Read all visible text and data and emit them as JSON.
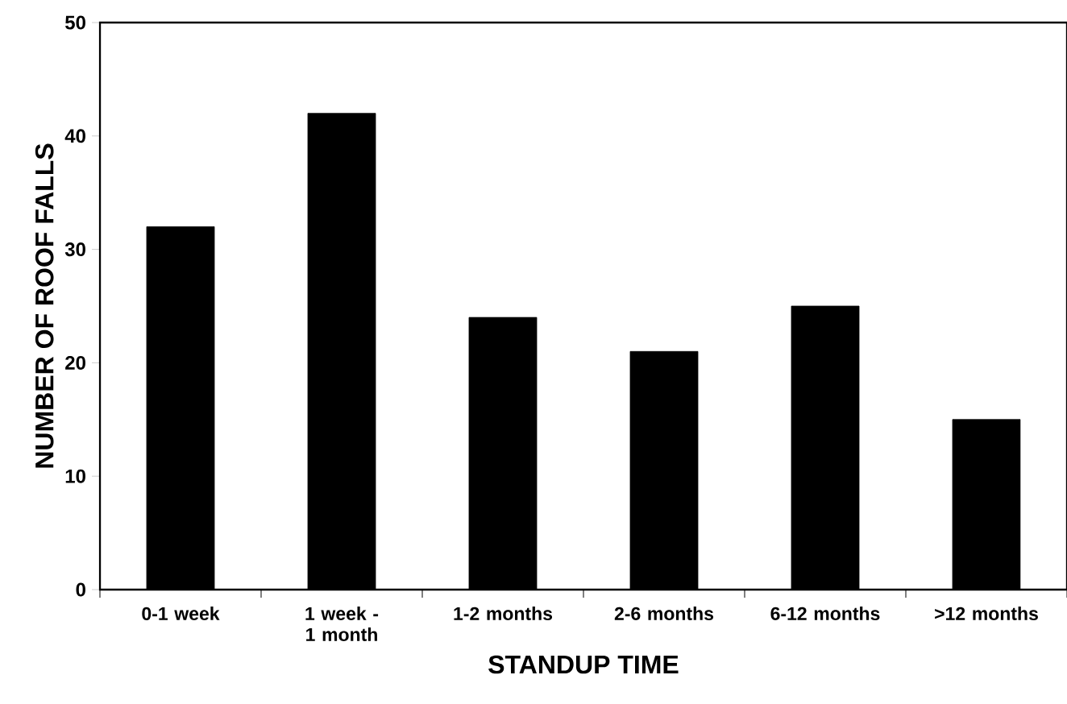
{
  "chart_data": {
    "type": "bar",
    "xlabel": "STANDUP TIME",
    "ylabel": "NUMBER OF ROOF FALLS",
    "categories": [
      "0-1 week",
      "1 week - 1 month",
      "1-2 months",
      "2-6 months",
      "6-12 months",
      ">12 months"
    ],
    "values": [
      32,
      42,
      24,
      21,
      25,
      15
    ],
    "color": "#000000",
    "ylim": [
      0,
      50
    ],
    "yticks": [
      0,
      10,
      20,
      30,
      40,
      50
    ],
    "grid": false
  }
}
